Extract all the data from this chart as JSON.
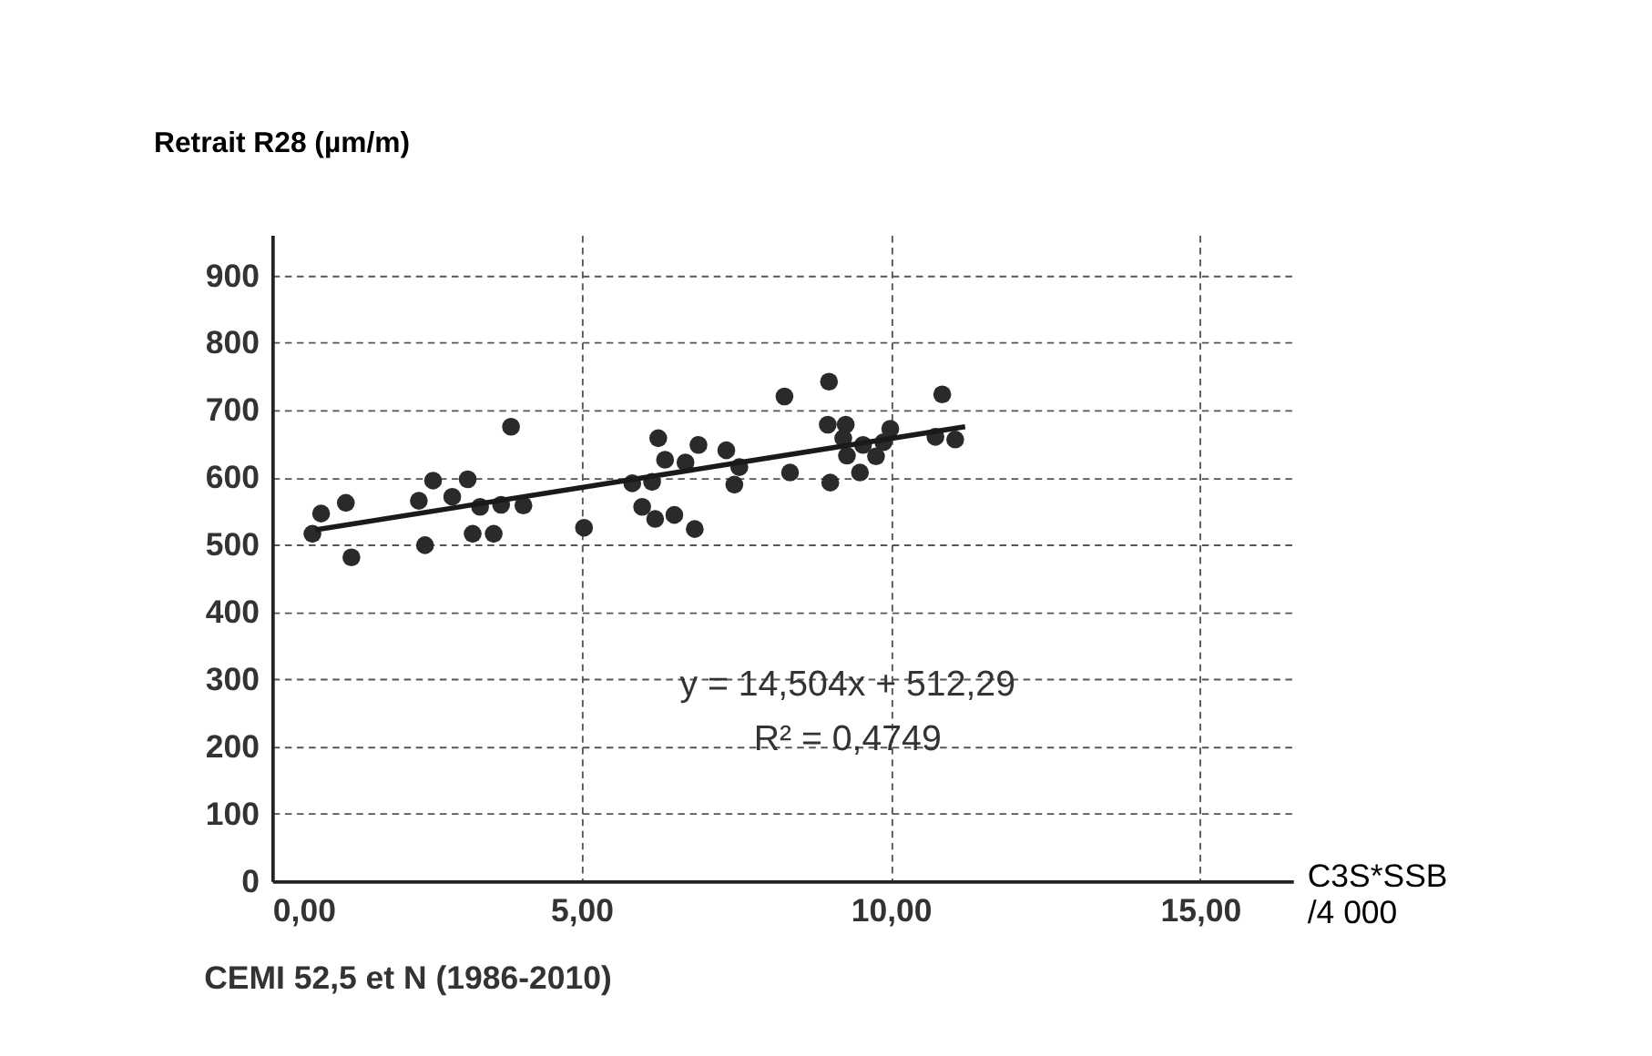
{
  "chart_data": {
    "type": "scatter",
    "title": "CEMI 52,5 et N (1986-2010)",
    "xlabel": "C3S*SSB /4 000",
    "ylabel": "Retrait R28 (µm/m)",
    "xlim": [
      0,
      16.5
    ],
    "ylim": [
      0,
      960
    ],
    "xticks": [
      {
        "value": 0,
        "label": "0,00"
      },
      {
        "value": 5,
        "label": "5,00"
      },
      {
        "value": 10,
        "label": "10,00"
      },
      {
        "value": 15,
        "label": "15,00"
      }
    ],
    "yticks": [
      0,
      100,
      200,
      300,
      400,
      500,
      600,
      700,
      800,
      900
    ],
    "grid": true,
    "annotations": [
      "y = 14,504x + 512,29",
      "R² = 0,4749"
    ],
    "series": [
      {
        "marker": "circle",
        "color": "#2a2a2a",
        "x": [
          0.65,
          0.79,
          1.19,
          1.28,
          2.37,
          2.47,
          2.6,
          2.91,
          3.16,
          3.24,
          3.36,
          3.58,
          3.7,
          3.86,
          4.06,
          5.04,
          5.82,
          6.14,
          5.98,
          6.19,
          6.24,
          6.35,
          6.5,
          6.68,
          6.83,
          6.89,
          7.34,
          7.47,
          7.55,
          8.28,
          8.37,
          9.0,
          8.98,
          9.02,
          9.27,
          9.23,
          9.29,
          9.5,
          9.55,
          9.76,
          9.88,
          9.99,
          10.72,
          10.83,
          11.04
        ],
        "values": [
          516,
          546,
          562,
          481,
          565,
          499,
          595,
          571,
          597,
          516,
          556,
          516,
          559,
          675,
          558,
          525,
          591,
          593,
          556,
          538,
          658,
          626,
          544,
          622,
          523,
          648,
          640,
          589,
          615,
          720,
          607,
          742,
          678,
          592,
          678,
          658,
          632,
          607,
          648,
          631,
          652,
          672,
          660,
          723,
          656
        ]
      },
      {
        "type": "line",
        "marker": "none",
        "color": "#1a1a1a",
        "x": [
          0.7,
          11.2
        ],
        "values": [
          522,
          675
        ]
      }
    ]
  }
}
